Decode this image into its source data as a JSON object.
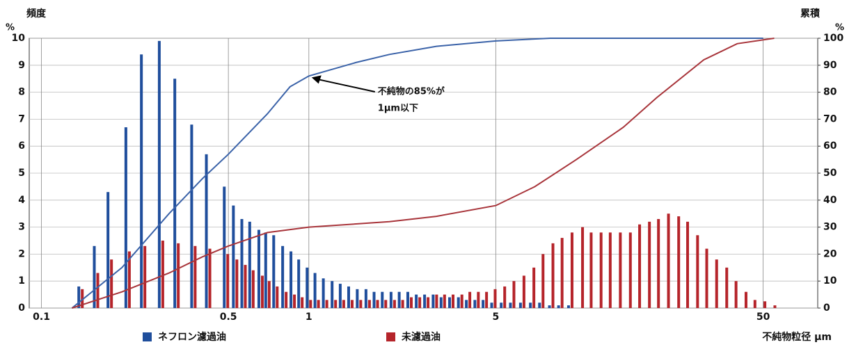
{
  "chart_data": {
    "type": "histogram-cumulative",
    "y_label": "頻度",
    "y_unit": "%",
    "y2_label": "累積",
    "y2_unit": "%",
    "x_label": "不純物粒径 μm",
    "annotation": [
      "不純物の85%が",
      "1μm以下"
    ],
    "x_log": true,
    "grid": true,
    "xlim": [
      0.09,
      80
    ],
    "xticks": [
      0.1,
      0.5,
      1,
      5,
      50
    ],
    "ylim": [
      0,
      10
    ],
    "yticks": [
      0,
      1,
      2,
      3,
      4,
      5,
      6,
      7,
      8,
      9,
      10
    ],
    "y2lim": [
      0,
      100
    ],
    "y2ticks": [
      0,
      10,
      20,
      30,
      40,
      50,
      60,
      70,
      80,
      90,
      100
    ],
    "x": [
      0.14,
      0.16,
      0.18,
      0.21,
      0.24,
      0.28,
      0.32,
      0.37,
      0.42,
      0.49,
      0.53,
      0.57,
      0.61,
      0.66,
      0.7,
      0.75,
      0.81,
      0.87,
      0.93,
      1.0,
      1.07,
      1.15,
      1.24,
      1.33,
      1.43,
      1.54,
      1.66,
      1.78,
      1.91,
      2.06,
      2.21,
      2.38,
      2.56,
      2.75,
      2.96,
      3.17,
      3.41,
      3.68,
      3.94,
      4.24,
      4.55,
      4.9,
      5.32,
      5.76,
      6.28,
      6.84,
      7.4,
      8.06,
      8.72,
      9.5,
      10.4,
      11.2,
      12.2,
      13.2,
      14.4,
      15.7,
      17.0,
      18.5,
      20.0,
      21.8,
      23.8,
      25.7,
      28.0,
      30.3,
      33.0,
      36.0,
      39.0,
      42.5,
      45.9,
      50.0,
      54.5
    ],
    "series": [
      {
        "name": "ネフロン濾過油",
        "color": "#1f4e9c",
        "values": [
          0.8,
          2.3,
          4.3,
          6.7,
          9.4,
          9.9,
          8.5,
          6.8,
          5.7,
          4.5,
          3.8,
          3.3,
          3.2,
          2.9,
          2.8,
          2.7,
          2.3,
          2.1,
          1.8,
          1.5,
          1.3,
          1.1,
          1.0,
          0.9,
          0.8,
          0.7,
          0.7,
          0.6,
          0.6,
          0.6,
          0.6,
          0.6,
          0.5,
          0.5,
          0.5,
          0.4,
          0.4,
          0.4,
          0.3,
          0.3,
          0.3,
          0.2,
          0.2,
          0.2,
          0.2,
          0.2,
          0.2,
          0.1,
          0.1,
          0.1,
          null,
          null,
          null,
          null,
          null,
          null,
          null,
          null,
          null,
          null,
          null,
          null,
          null,
          null,
          null,
          null,
          null,
          null,
          null,
          null,
          null
        ],
        "cumulative": {
          "axis": "y2",
          "color": "#3a62a8",
          "x": [
            0.13,
            0.2,
            0.3,
            0.4,
            0.5,
            0.7,
            0.85,
            1,
            1.5,
            2,
            3,
            5,
            8,
            50
          ],
          "values": [
            0,
            15,
            35,
            48,
            57,
            72,
            82,
            86,
            91,
            94,
            97,
            99,
            100,
            100
          ]
        }
      },
      {
        "name": "未濾過油",
        "color": "#b5242a",
        "values": [
          0.7,
          1.3,
          1.8,
          2.1,
          2.3,
          2.5,
          2.4,
          2.3,
          2.2,
          2.0,
          1.8,
          1.6,
          1.4,
          1.2,
          1.0,
          0.8,
          0.6,
          0.5,
          0.4,
          0.3,
          0.3,
          0.3,
          0.3,
          0.3,
          0.3,
          0.3,
          0.3,
          0.3,
          0.3,
          0.3,
          0.3,
          0.4,
          0.4,
          0.4,
          0.5,
          0.5,
          0.5,
          0.5,
          0.6,
          0.6,
          0.6,
          0.7,
          0.8,
          1.0,
          1.2,
          1.5,
          2.0,
          2.4,
          2.6,
          2.8,
          3.0,
          2.8,
          2.8,
          2.8,
          2.8,
          2.8,
          3.1,
          3.2,
          3.3,
          3.5,
          3.4,
          3.2,
          2.7,
          2.2,
          1.8,
          1.5,
          1.0,
          0.6,
          0.3,
          0.25,
          0.1
        ],
        "cumulative": {
          "axis": "y2",
          "color": "#a8343a",
          "x": [
            0.13,
            0.2,
            0.3,
            0.4,
            0.5,
            0.7,
            1,
            2,
            3,
            5,
            7,
            10,
            15,
            20,
            30,
            40,
            55
          ],
          "values": [
            0,
            6,
            13,
            19,
            23,
            28,
            30,
            32,
            34,
            38,
            45,
            55,
            67,
            78,
            92,
            98,
            100
          ]
        }
      }
    ]
  }
}
